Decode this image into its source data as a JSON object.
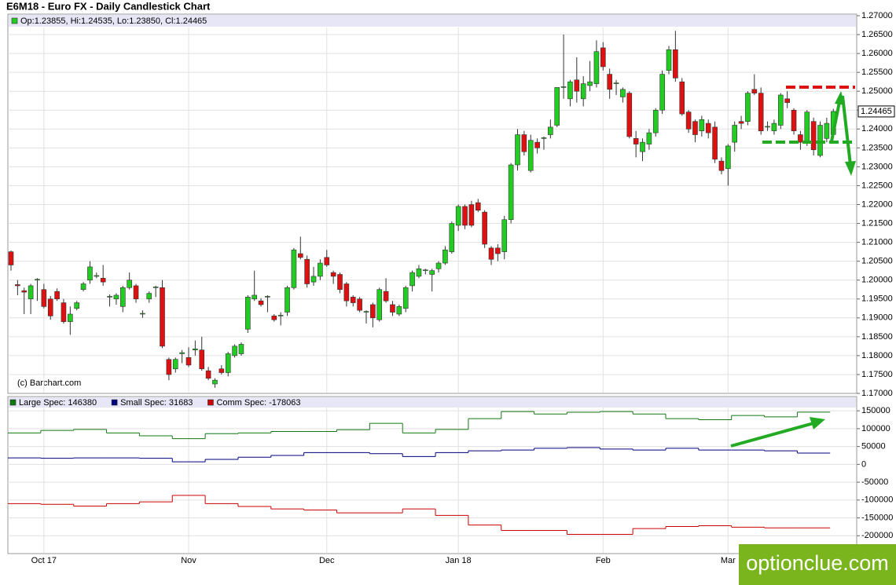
{
  "title": "E6M18 - Euro FX - Daily Candlestick Chart",
  "copyright": "(c) Barchart.com",
  "watermark": "optionclue.com",
  "chart_data": [
    {
      "type": "candlestick",
      "legend": "Op:1.23855, Hi:1.24535, Lo:1.23850, Cl:1.24465",
      "last_label": "1.24465",
      "up_color": "#22cc22",
      "down_color": "#dd1111",
      "ylim": [
        1.17,
        1.27
      ],
      "yticks": [
        {
          "value": 1.17,
          "label": "1.17000"
        },
        {
          "value": 1.175,
          "label": "1.17500"
        },
        {
          "value": 1.18,
          "label": "1.18000"
        },
        {
          "value": 1.185,
          "label": "1.18500"
        },
        {
          "value": 1.19,
          "label": "1.19000"
        },
        {
          "value": 1.195,
          "label": "1.19500"
        },
        {
          "value": 1.2,
          "label": "1.20000"
        },
        {
          "value": 1.205,
          "label": "1.20500"
        },
        {
          "value": 1.21,
          "label": "1.21000"
        },
        {
          "value": 1.215,
          "label": "1.21500"
        },
        {
          "value": 1.22,
          "label": "1.22000"
        },
        {
          "value": 1.225,
          "label": "1.22500"
        },
        {
          "value": 1.23,
          "label": "1.23000"
        },
        {
          "value": 1.235,
          "label": "1.23500"
        },
        {
          "value": 1.24,
          "label": "1.24000"
        },
        {
          "value": 1.245,
          "label": "1.24500"
        },
        {
          "value": 1.25,
          "label": "1.25000"
        },
        {
          "value": 1.255,
          "label": "1.25500"
        },
        {
          "value": 1.26,
          "label": "1.26000"
        },
        {
          "value": 1.265,
          "label": "1.26500"
        },
        {
          "value": 1.27,
          "label": "1.27000"
        }
      ],
      "grid": true,
      "categories": [
        null,
        null,
        null,
        null,
        null,
        "Oct 17",
        null,
        null,
        null,
        null,
        null,
        null,
        null,
        null,
        null,
        null,
        null,
        null,
        null,
        null,
        null,
        null,
        null,
        null,
        null,
        null,
        null,
        "Nov",
        null,
        null,
        null,
        null,
        null,
        null,
        null,
        null,
        null,
        null,
        null,
        null,
        null,
        null,
        null,
        null,
        null,
        null,
        null,
        null,
        "Dec",
        null,
        null,
        null,
        null,
        null,
        null,
        null,
        null,
        null,
        null,
        null,
        null,
        null,
        null,
        null,
        null,
        null,
        null,
        null,
        "Jan 18",
        null,
        null,
        null,
        null,
        null,
        null,
        null,
        null,
        null,
        null,
        null,
        null,
        null,
        null,
        null,
        null,
        null,
        null,
        null,
        null,
        null,
        "Feb",
        null,
        null,
        null,
        null,
        null,
        null,
        null,
        null,
        null,
        null,
        null,
        null,
        null,
        null,
        null,
        null,
        null,
        null,
        "Mar",
        null,
        null,
        null,
        null,
        null,
        null,
        null,
        null,
        null,
        null,
        null,
        null,
        null,
        null,
        null,
        null
      ],
      "open": [
        1.2075,
        1.1988,
        1.1972,
        1.195,
        1.2,
        1.1975,
        1.195,
        1.197,
        1.194,
        1.189,
        1.1925,
        1.1975,
        1.2,
        1.201,
        1.2005,
        1.1955,
        1.195,
        1.193,
        1.198,
        1.1985,
        1.191,
        1.195,
        1.198,
        1.198,
        1.179,
        1.1765,
        1.1805,
        1.1795,
        1.1815,
        1.1815,
        1.176,
        1.1725,
        1.1765,
        1.1755,
        1.18,
        1.1805,
        1.187,
        1.195,
        1.1945,
        1.1955,
        1.1905,
        1.1905,
        1.1915,
        1.198,
        1.207,
        1.2055,
        1.1995,
        1.201,
        1.206,
        1.202,
        1.2015,
        1.199,
        1.1955,
        1.195,
        1.1915,
        1.1935,
        1.1895,
        1.197,
        1.1935,
        1.191,
        1.1925,
        1.1985,
        1.201,
        1.2025,
        1.2015,
        1.203,
        1.2045,
        1.2075,
        1.2145,
        1.2195,
        1.22,
        1.2205,
        1.218,
        1.2085,
        1.2085,
        1.2075,
        1.216,
        1.2305,
        1.2385,
        1.229,
        1.2365,
        1.2375,
        1.2385,
        1.241,
        1.251,
        1.248,
        1.253,
        1.248,
        1.2515,
        1.252,
        1.2615,
        1.2545,
        1.252,
        1.2485,
        1.2495,
        1.2375,
        1.234,
        1.236,
        1.239,
        1.245,
        1.2555,
        1.261,
        1.2525,
        1.2445,
        1.242,
        1.2395,
        1.2415,
        1.2405,
        1.2315,
        1.2295,
        1.2365,
        1.242,
        1.242,
        1.2505,
        1.2495,
        1.2405,
        1.2395,
        1.241,
        1.248,
        1.245,
        1.2385,
        1.2365,
        1.242,
        1.233,
        1.2375,
        1.23855
      ],
      "high": [
        1.2078,
        1.2,
        1.198,
        1.199,
        1.2005,
        1.199,
        1.1958,
        1.1978,
        1.195,
        1.193,
        1.1945,
        1.1995,
        1.205,
        1.202,
        1.204,
        1.1962,
        1.1965,
        1.1985,
        1.202,
        1.199,
        1.192,
        1.197,
        1.1985,
        1.2,
        1.1795,
        1.1795,
        1.1815,
        1.1822,
        1.184,
        1.185,
        1.177,
        1.174,
        1.1775,
        1.181,
        1.183,
        1.1835,
        1.196,
        1.2025,
        1.1952,
        1.196,
        1.191,
        1.1915,
        1.1985,
        1.2085,
        1.2115,
        1.2065,
        1.2035,
        1.2055,
        1.208,
        1.2025,
        1.202,
        1.1995,
        1.196,
        1.1955,
        1.192,
        1.194,
        1.198,
        1.2005,
        1.1945,
        1.1935,
        1.1985,
        1.2025,
        1.204,
        1.203,
        1.203,
        1.205,
        1.209,
        1.2155,
        1.22,
        1.22,
        1.221,
        1.2215,
        1.2185,
        1.209,
        1.2095,
        1.217,
        1.231,
        1.24,
        1.2395,
        1.2385,
        1.2375,
        1.238,
        1.2425,
        1.251,
        1.265,
        1.253,
        1.259,
        1.254,
        1.258,
        1.2635,
        1.263,
        1.256,
        1.253,
        1.251,
        1.25,
        1.2395,
        1.2375,
        1.24,
        1.2455,
        1.2555,
        1.262,
        1.266,
        1.2535,
        1.245,
        1.2425,
        1.2435,
        1.2425,
        1.242,
        1.2325,
        1.236,
        1.242,
        1.2435,
        1.25,
        1.2545,
        1.251,
        1.242,
        1.2425,
        1.2495,
        1.25,
        1.2455,
        1.2395,
        1.245,
        1.243,
        1.242,
        1.243,
        1.24535
      ],
      "low": [
        1.2025,
        1.196,
        1.191,
        1.191,
        1.1945,
        1.1925,
        1.1895,
        1.1945,
        1.1885,
        1.1855,
        1.192,
        1.197,
        1.199,
        1.2005,
        1.1985,
        1.193,
        1.1935,
        1.1915,
        1.1975,
        1.194,
        1.19,
        1.194,
        1.1955,
        1.182,
        1.1735,
        1.1755,
        1.178,
        1.177,
        1.18,
        1.176,
        1.1735,
        1.1715,
        1.175,
        1.1745,
        1.1795,
        1.18,
        1.186,
        1.1945,
        1.193,
        1.1915,
        1.189,
        1.188,
        1.1905,
        1.1975,
        1.2055,
        1.198,
        1.1985,
        1.2,
        1.2035,
        1.199,
        1.1965,
        1.193,
        1.193,
        1.1915,
        1.1885,
        1.1875,
        1.189,
        1.194,
        1.1905,
        1.1905,
        1.1915,
        1.197,
        1.2005,
        1.2015,
        1.197,
        1.202,
        1.204,
        1.207,
        1.213,
        1.2135,
        1.214,
        1.218,
        1.2085,
        1.204,
        1.205,
        1.2055,
        1.215,
        1.229,
        1.233,
        1.2285,
        1.2335,
        1.2345,
        1.2375,
        1.2405,
        1.248,
        1.246,
        1.247,
        1.246,
        1.25,
        1.251,
        1.2555,
        1.248,
        1.249,
        1.247,
        1.2375,
        1.2325,
        1.2315,
        1.2345,
        1.238,
        1.244,
        1.2545,
        1.2525,
        1.2435,
        1.239,
        1.2365,
        1.238,
        1.2375,
        1.231,
        1.228,
        1.225,
        1.234,
        1.24,
        1.241,
        1.249,
        1.2385,
        1.2395,
        1.2385,
        1.24,
        1.2455,
        1.2385,
        1.2345,
        1.2355,
        1.233,
        1.2325,
        1.2365,
        1.2385
      ],
      "close": [
        1.204,
        1.1985,
        1.1968,
        1.1985,
        1.2002,
        1.193,
        1.1905,
        1.195,
        1.189,
        1.191,
        1.194,
        1.199,
        1.2035,
        1.2012,
        1.1995,
        1.1957,
        1.196,
        1.198,
        1.2,
        1.195,
        1.1912,
        1.1965,
        1.1982,
        1.1825,
        1.175,
        1.179,
        1.1808,
        1.1775,
        1.1818,
        1.1765,
        1.174,
        1.1735,
        1.1755,
        1.1805,
        1.1825,
        1.183,
        1.1955,
        1.196,
        1.1935,
        1.1957,
        1.1895,
        1.1907,
        1.198,
        1.208,
        1.206,
        1.199,
        1.201,
        1.2045,
        1.204,
        1.201,
        1.1975,
        1.1945,
        1.194,
        1.192,
        1.1917,
        1.19,
        1.1975,
        1.1945,
        1.1915,
        1.193,
        1.198,
        1.202,
        1.203,
        1.2027,
        1.2025,
        1.2045,
        1.208,
        1.215,
        1.2195,
        1.2145,
        1.2145,
        1.2185,
        1.2095,
        1.2055,
        1.207,
        1.216,
        1.2305,
        1.2385,
        1.234,
        1.237,
        1.235,
        1.2377,
        1.2405,
        1.251,
        1.2512,
        1.2525,
        1.25,
        1.252,
        1.2525,
        1.2605,
        1.2565,
        1.2505,
        1.2522,
        1.2505,
        1.238,
        1.236,
        1.2365,
        1.239,
        1.245,
        1.2545,
        1.261,
        1.2535,
        1.244,
        1.24,
        1.2385,
        1.2425,
        1.239,
        1.232,
        1.229,
        1.2355,
        1.241,
        1.2415,
        1.2495,
        1.2495,
        1.2395,
        1.2407,
        1.2415,
        1.249,
        1.247,
        1.2395,
        1.2365,
        1.2445,
        1.2345,
        1.241,
        1.2415,
        1.24465
      ]
    },
    {
      "type": "line",
      "step": true,
      "ylim": [
        -250000,
        190000
      ],
      "yticks": [
        150000,
        100000,
        50000,
        0,
        -50000,
        -100000,
        -150000,
        -200000
      ],
      "grid": true,
      "series": [
        {
          "name": "Large Spec: 146380",
          "color": "#117711",
          "values": [
            88000,
            95000,
            98000,
            88000,
            80000,
            72000,
            86000,
            88000,
            92000,
            92000,
            97000,
            115000,
            88000,
            98000,
            128000,
            148000,
            141000,
            146000,
            148000,
            141000,
            128000,
            125000,
            137000,
            133000,
            146380
          ]
        },
        {
          "name": "Small Spec: 31683",
          "color": "#000080",
          "values": [
            18000,
            17000,
            18000,
            18000,
            17000,
            7000,
            14000,
            20000,
            25000,
            33000,
            33000,
            30000,
            22000,
            33000,
            38000,
            40000,
            45000,
            47000,
            43000,
            40000,
            45000,
            40000,
            40000,
            38000,
            31683
          ]
        },
        {
          "name": "Comm Spec: -178063",
          "color": "#cc0000",
          "values": [
            -110000,
            -112000,
            -117000,
            -110000,
            -105000,
            -87000,
            -110000,
            -118000,
            -125000,
            -128000,
            -136000,
            -136000,
            -125000,
            -143000,
            -170000,
            -185000,
            -185000,
            -196000,
            -196000,
            -180000,
            -174000,
            -172000,
            -176000,
            -178000,
            -178063
          ]
        }
      ]
    }
  ]
}
